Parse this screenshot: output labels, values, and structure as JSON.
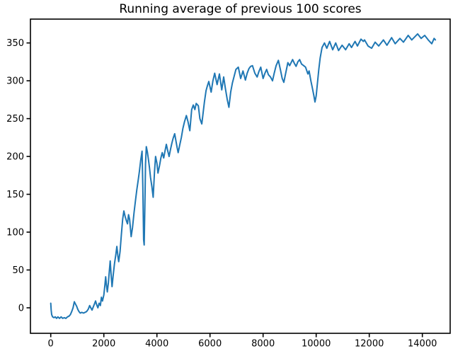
{
  "figure": {
    "background": "#ffffff"
  },
  "chart_data": {
    "type": "line",
    "title": "Running average of previous 100 scores",
    "xlabel": "",
    "ylabel": "",
    "legend": "none",
    "grid": false,
    "line_color": "#1f77b4",
    "axis_color": "#000000",
    "x_ticks": [
      0,
      2000,
      4000,
      6000,
      8000,
      10000,
      12000,
      14000
    ],
    "y_ticks": [
      0,
      50,
      100,
      150,
      200,
      250,
      300,
      350
    ],
    "xlim": [
      -765,
      15048
    ],
    "ylim": [
      -33.7,
      381.5
    ],
    "points": [
      [
        0,
        6
      ],
      [
        15,
        -3
      ],
      [
        35,
        -9
      ],
      [
        70,
        -12
      ],
      [
        120,
        -13
      ],
      [
        170,
        -12
      ],
      [
        220,
        -14
      ],
      [
        270,
        -12
      ],
      [
        330,
        -14
      ],
      [
        390,
        -12
      ],
      [
        450,
        -14
      ],
      [
        510,
        -13
      ],
      [
        570,
        -14
      ],
      [
        630,
        -12
      ],
      [
        690,
        -11
      ],
      [
        740,
        -9
      ],
      [
        790,
        -5
      ],
      [
        840,
        0
      ],
      [
        888,
        8
      ],
      [
        930,
        5
      ],
      [
        975,
        2
      ],
      [
        1020,
        -2
      ],
      [
        1065,
        -5
      ],
      [
        1109,
        -7
      ],
      [
        1170,
        -6
      ],
      [
        1230,
        -7
      ],
      [
        1290,
        -6
      ],
      [
        1350,
        -5
      ],
      [
        1410,
        -2
      ],
      [
        1467,
        3
      ],
      [
        1510,
        0
      ],
      [
        1556,
        -3
      ],
      [
        1600,
        1
      ],
      [
        1645,
        5
      ],
      [
        1688,
        9
      ],
      [
        1730,
        4
      ],
      [
        1777,
        0
      ],
      [
        1822,
        6
      ],
      [
        1870,
        3
      ],
      [
        1910,
        14
      ],
      [
        1950,
        9
      ],
      [
        2000,
        17
      ],
      [
        2040,
        30
      ],
      [
        2070,
        41
      ],
      [
        2100,
        30
      ],
      [
        2130,
        21
      ],
      [
        2170,
        33
      ],
      [
        2210,
        50
      ],
      [
        2240,
        62
      ],
      [
        2270,
        46
      ],
      [
        2310,
        28
      ],
      [
        2350,
        42
      ],
      [
        2400,
        58
      ],
      [
        2450,
        70
      ],
      [
        2490,
        81
      ],
      [
        2530,
        68
      ],
      [
        2560,
        61
      ],
      [
        2610,
        74
      ],
      [
        2660,
        96
      ],
      [
        2710,
        117
      ],
      [
        2756,
        128
      ],
      [
        2800,
        121
      ],
      [
        2850,
        115
      ],
      [
        2890,
        111
      ],
      [
        2930,
        123
      ],
      [
        2970,
        117
      ],
      [
        3030,
        94
      ],
      [
        3080,
        106
      ],
      [
        3140,
        126
      ],
      [
        3200,
        144
      ],
      [
        3243,
        156
      ],
      [
        3289,
        167
      ],
      [
        3340,
        180
      ],
      [
        3390,
        195
      ],
      [
        3440,
        207
      ],
      [
        3470,
        160
      ],
      [
        3500,
        90
      ],
      [
        3520,
        83
      ],
      [
        3545,
        130
      ],
      [
        3570,
        190
      ],
      [
        3600,
        213
      ],
      [
        3640,
        206
      ],
      [
        3680,
        196
      ],
      [
        3720,
        185
      ],
      [
        3760,
        172
      ],
      [
        3810,
        160
      ],
      [
        3860,
        146
      ],
      [
        3910,
        180
      ],
      [
        3950,
        200
      ],
      [
        4000,
        191
      ],
      [
        4040,
        178
      ],
      [
        4100,
        188
      ],
      [
        4150,
        198
      ],
      [
        4200,
        205
      ],
      [
        4255,
        198
      ],
      [
        4310,
        208
      ],
      [
        4355,
        216
      ],
      [
        4410,
        207
      ],
      [
        4460,
        200
      ],
      [
        4510,
        209
      ],
      [
        4560,
        217
      ],
      [
        4610,
        224
      ],
      [
        4670,
        230
      ],
      [
        4710,
        222
      ],
      [
        4760,
        212
      ],
      [
        4800,
        205
      ],
      [
        4860,
        215
      ],
      [
        4920,
        225
      ],
      [
        4980,
        237
      ],
      [
        5040,
        246
      ],
      [
        5110,
        254
      ],
      [
        5170,
        246
      ],
      [
        5240,
        234
      ],
      [
        5310,
        262
      ],
      [
        5370,
        268
      ],
      [
        5430,
        262
      ],
      [
        5480,
        270
      ],
      [
        5560,
        267
      ],
      [
        5620,
        250
      ],
      [
        5690,
        243
      ],
      [
        5740,
        257
      ],
      [
        5790,
        272
      ],
      [
        5850,
        287
      ],
      [
        5900,
        293
      ],
      [
        5955,
        299
      ],
      [
        6043,
        285
      ],
      [
        6110,
        300
      ],
      [
        6177,
        310
      ],
      [
        6266,
        295
      ],
      [
        6355,
        309
      ],
      [
        6444,
        288
      ],
      [
        6515,
        305
      ],
      [
        6580,
        290
      ],
      [
        6650,
        275
      ],
      [
        6711,
        265
      ],
      [
        6780,
        285
      ],
      [
        6844,
        297
      ],
      [
        6910,
        306
      ],
      [
        6977,
        315
      ],
      [
        7066,
        318
      ],
      [
        7155,
        303
      ],
      [
        7244,
        313
      ],
      [
        7333,
        301
      ],
      [
        7400,
        310
      ],
      [
        7466,
        316
      ],
      [
        7530,
        319
      ],
      [
        7600,
        320
      ],
      [
        7690,
        310
      ],
      [
        7777,
        305
      ],
      [
        7840,
        312
      ],
      [
        7911,
        318
      ],
      [
        8000,
        303
      ],
      [
        8070,
        310
      ],
      [
        8133,
        315
      ],
      [
        8200,
        308
      ],
      [
        8280,
        305
      ],
      [
        8355,
        300
      ],
      [
        8420,
        310
      ],
      [
        8490,
        320
      ],
      [
        8577,
        327
      ],
      [
        8650,
        315
      ],
      [
        8720,
        303
      ],
      [
        8782,
        298
      ],
      [
        8850,
        310
      ],
      [
        8933,
        324
      ],
      [
        9000,
        320
      ],
      [
        9111,
        328
      ],
      [
        9180,
        323
      ],
      [
        9244,
        319
      ],
      [
        9310,
        325
      ],
      [
        9377,
        328
      ],
      [
        9450,
        322
      ],
      [
        9530,
        320
      ],
      [
        9600,
        318
      ],
      [
        9689,
        309
      ],
      [
        9733,
        313
      ],
      [
        9800,
        300
      ],
      [
        9860,
        290
      ],
      [
        9910,
        281
      ],
      [
        9955,
        272
      ],
      [
        10000,
        280
      ],
      [
        10050,
        298
      ],
      [
        10100,
        315
      ],
      [
        10150,
        330
      ],
      [
        10222,
        344
      ],
      [
        10311,
        350
      ],
      [
        10400,
        343
      ],
      [
        10507,
        352
      ],
      [
        10622,
        341
      ],
      [
        10736,
        350
      ],
      [
        10843,
        340
      ],
      [
        10977,
        347
      ],
      [
        11110,
        341
      ],
      [
        11243,
        349
      ],
      [
        11332,
        344
      ],
      [
        11465,
        352
      ],
      [
        11554,
        346
      ],
      [
        11688,
        355
      ],
      [
        11777,
        352
      ],
      [
        11822,
        354
      ],
      [
        11955,
        346
      ],
      [
        12088,
        343
      ],
      [
        12221,
        351
      ],
      [
        12355,
        346
      ],
      [
        12533,
        354
      ],
      [
        12666,
        347
      ],
      [
        12843,
        357
      ],
      [
        12977,
        349
      ],
      [
        13155,
        356
      ],
      [
        13288,
        351
      ],
      [
        13466,
        360
      ],
      [
        13599,
        354
      ],
      [
        13822,
        362
      ],
      [
        13955,
        356
      ],
      [
        14088,
        360
      ],
      [
        14221,
        354
      ],
      [
        14355,
        349
      ],
      [
        14444,
        356
      ],
      [
        14490,
        354
      ]
    ]
  }
}
